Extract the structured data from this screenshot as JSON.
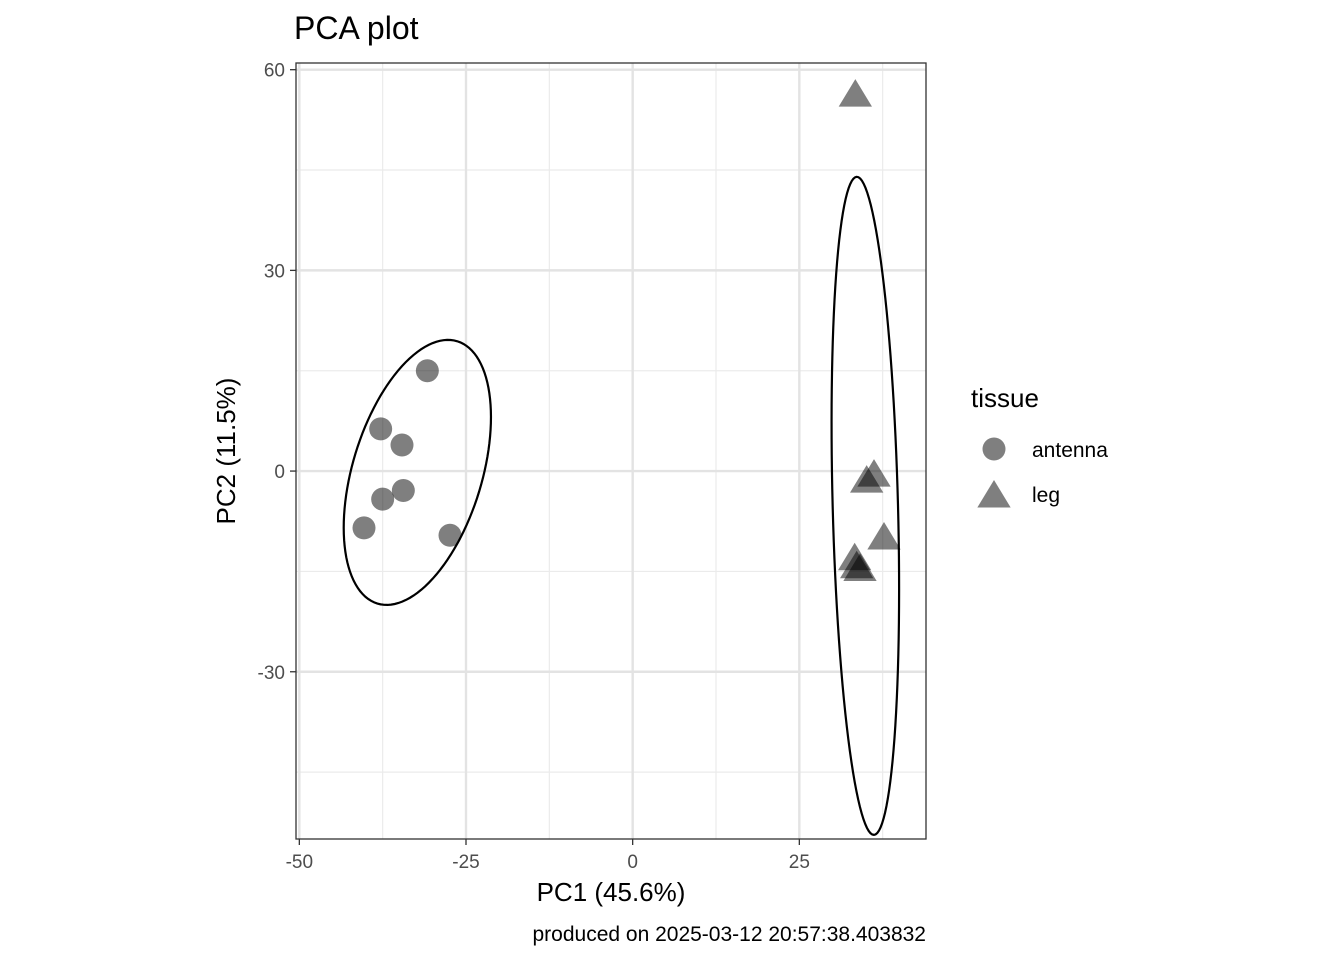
{
  "chart_data": {
    "type": "scatter",
    "title": "PCA plot",
    "xlabel": "PC1 (45.6%)",
    "ylabel": "PC2 (11.5%)",
    "caption": "produced on 2025-03-12 20:57:38.403832",
    "xlim": [
      -50.5,
      44
    ],
    "ylim": [
      -55,
      61
    ],
    "x_ticks": [
      -50,
      -25,
      0,
      25
    ],
    "x_tick_labels": [
      "-50",
      "-25",
      "0",
      "25"
    ],
    "y_ticks": [
      -30,
      0,
      30,
      60
    ],
    "y_tick_labels": [
      "-30",
      "0",
      "30",
      "60"
    ],
    "x_minor": [
      -37.5,
      -12.5,
      12.5,
      37.5
    ],
    "y_minor": [
      -45,
      -15,
      15,
      45
    ],
    "grid": true,
    "legend": {
      "title": "tissue",
      "position": "right",
      "entries": [
        {
          "label": "antenna",
          "shape": "circle"
        },
        {
          "label": "leg",
          "shape": "triangle"
        }
      ]
    },
    "point_color": "#000000",
    "point_opacity": 0.5,
    "series": [
      {
        "name": "antenna",
        "shape": "circle",
        "points": [
          {
            "x": -30.8,
            "y": 15.0
          },
          {
            "x": -37.8,
            "y": 6.3
          },
          {
            "x": -34.6,
            "y": 3.9
          },
          {
            "x": -34.4,
            "y": -2.9
          },
          {
            "x": -37.5,
            "y": -4.2
          },
          {
            "x": -40.3,
            "y": -8.5
          },
          {
            "x": -27.4,
            "y": -9.6
          }
        ],
        "ellipse": {
          "cx": -32.3,
          "cy": -0.2,
          "rx": 20.5,
          "ry": 9.7,
          "angle": 73
        }
      },
      {
        "name": "leg",
        "shape": "triangle",
        "points": [
          {
            "x": 33.4,
            "y": 56.5
          },
          {
            "x": 36.2,
            "y": -0.3
          },
          {
            "x": 35.1,
            "y": -1.2
          },
          {
            "x": 37.7,
            "y": -9.7
          },
          {
            "x": 33.3,
            "y": -12.8
          },
          {
            "x": 34.1,
            "y": -14.4
          },
          {
            "x": 33.6,
            "y": -14.0
          }
        ],
        "ellipse": {
          "cx": 34.9,
          "cy": -5.2,
          "rx": 49.2,
          "ry": 4.9,
          "angle": 91.5
        }
      }
    ]
  }
}
